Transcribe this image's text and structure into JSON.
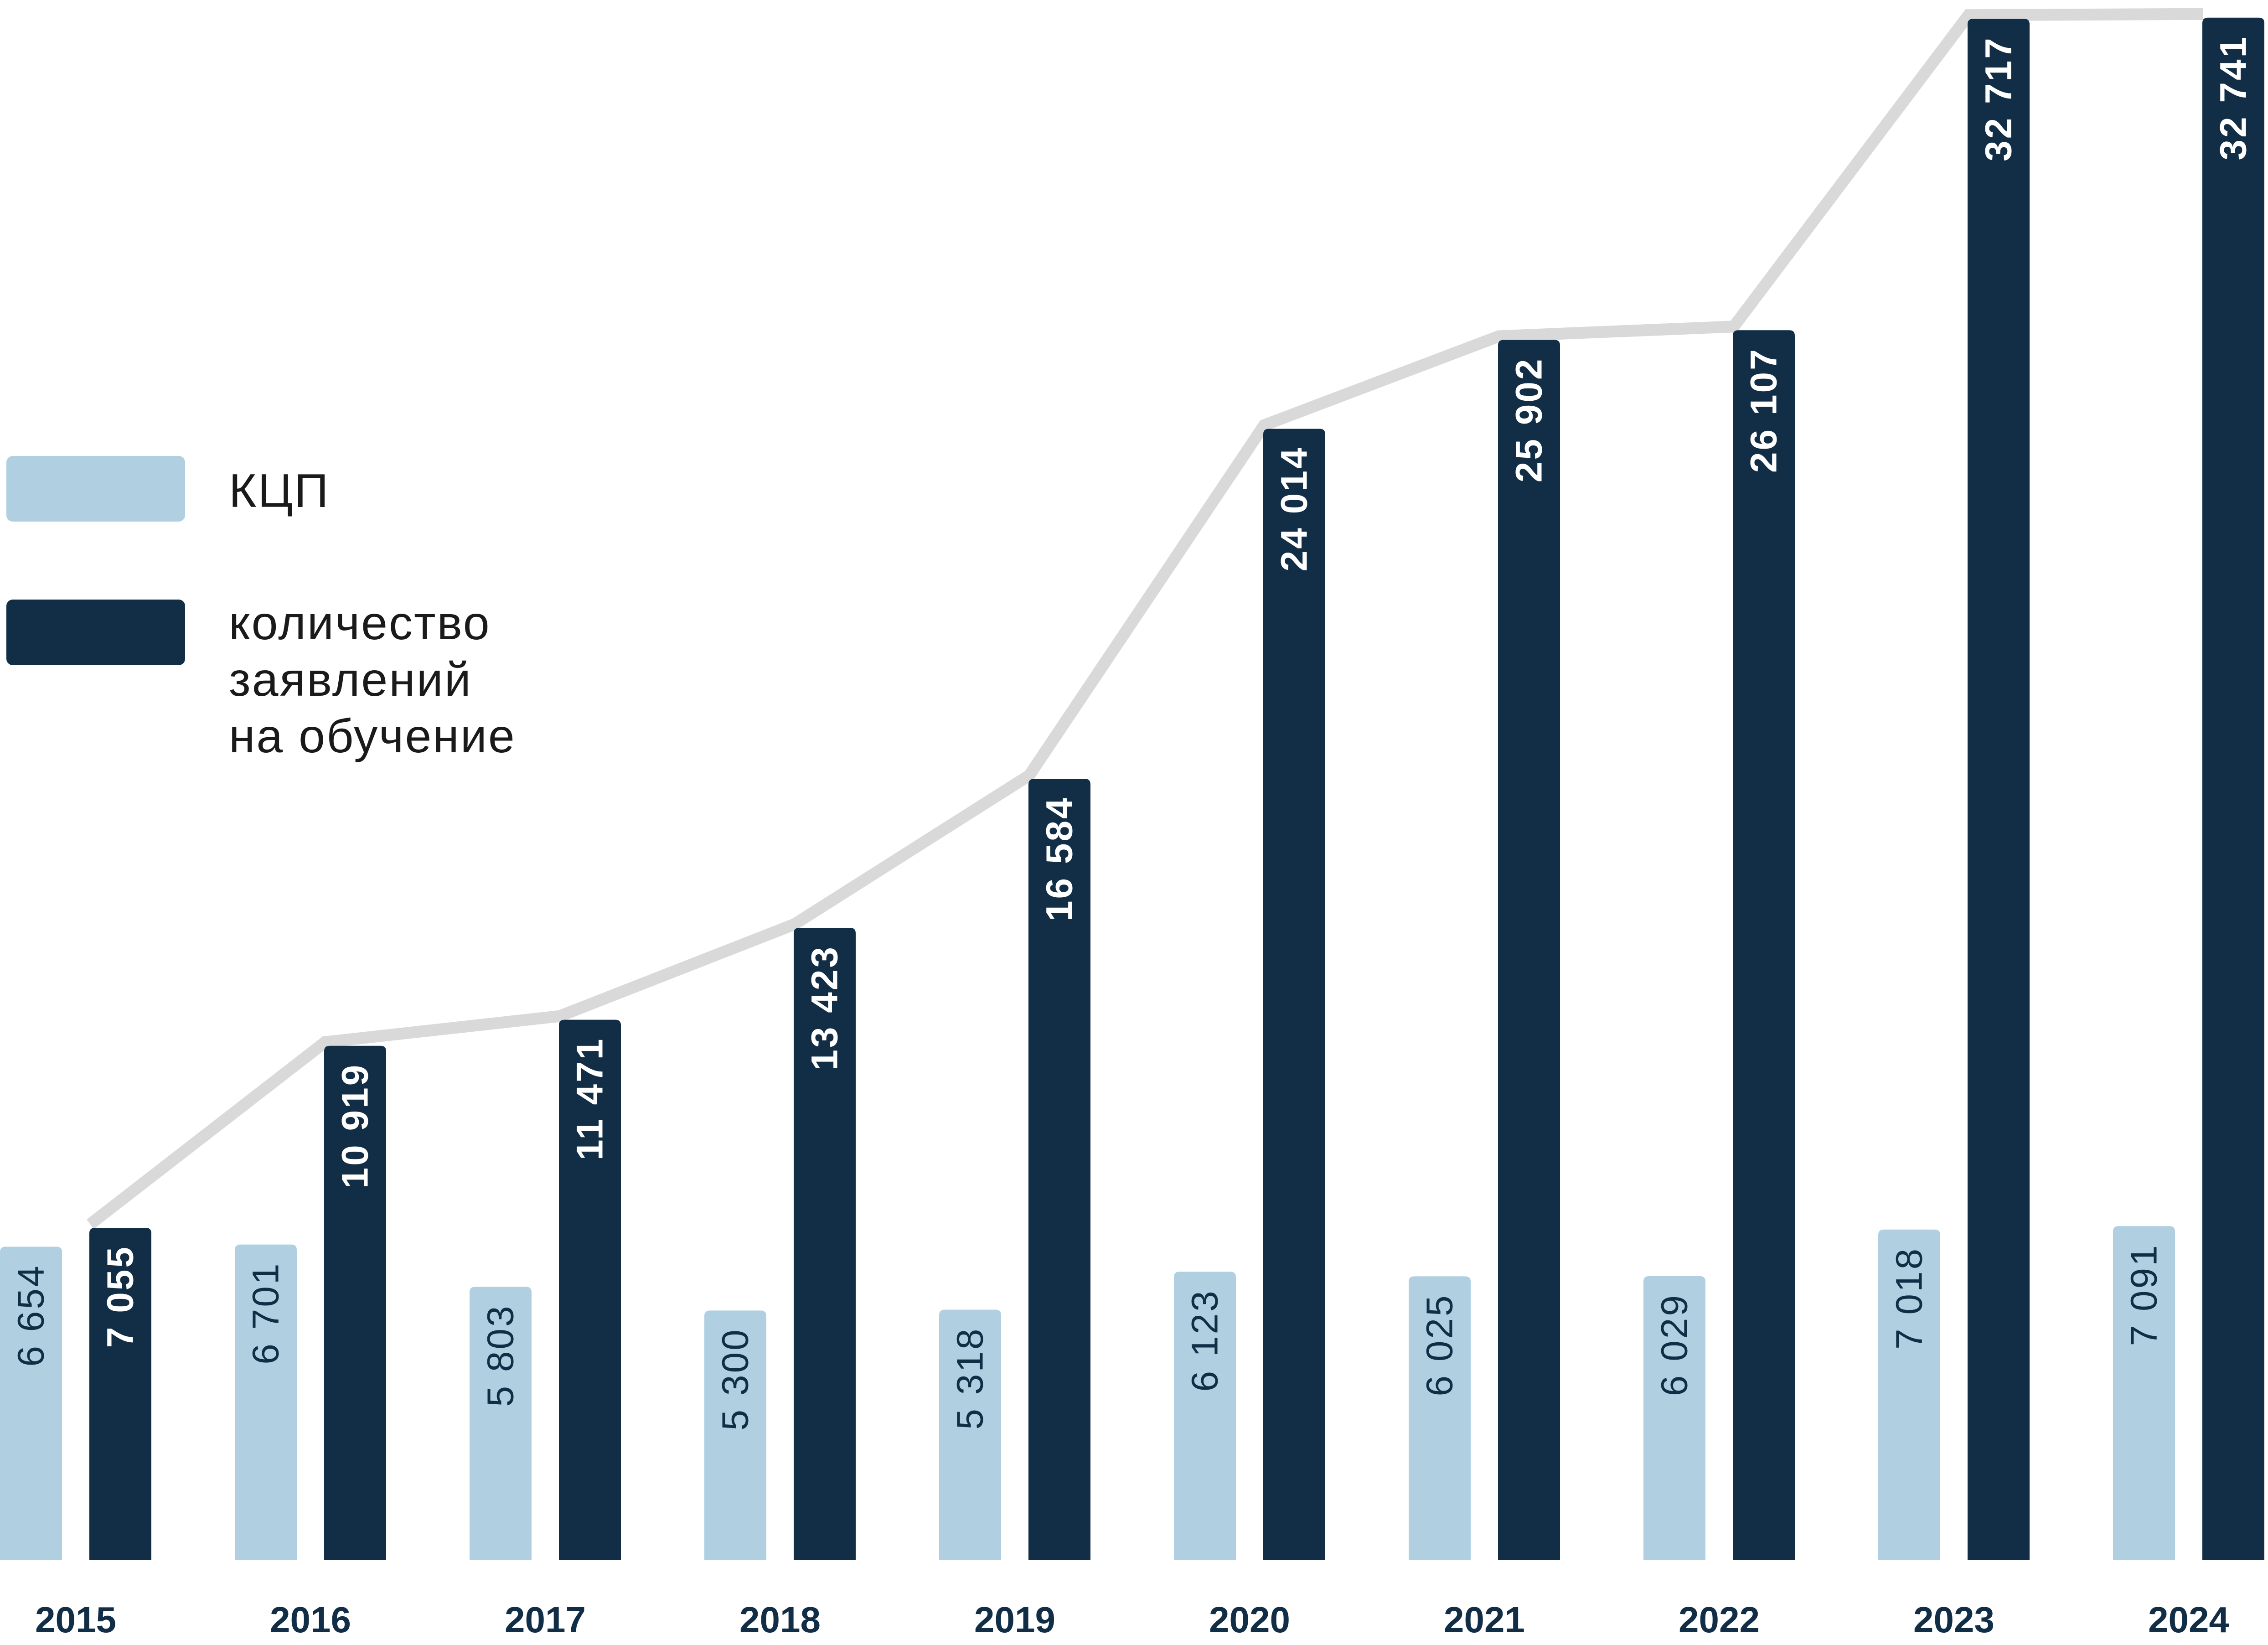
{
  "chart_data": {
    "type": "bar",
    "categories": [
      "2015",
      "2016",
      "2017",
      "2018",
      "2019",
      "2020",
      "2021",
      "2022",
      "2023",
      "2024"
    ],
    "series": [
      {
        "name": "КЦП",
        "values": [
          6654,
          6701,
          5803,
          5300,
          5318,
          6123,
          6025,
          6029,
          7018,
          7091
        ],
        "labels": [
          "6 654",
          "6 701",
          "5 803",
          "5 300",
          "5 318",
          "6 123",
          "6 025",
          "6 029",
          "7 018",
          "7 091"
        ],
        "color": "#b0d0e2"
      },
      {
        "name": "количество\nзаявлений\nна обучение",
        "values": [
          7055,
          10919,
          11471,
          13423,
          16584,
          24014,
          25902,
          26107,
          32717,
          32741
        ],
        "labels": [
          "7 055",
          "10 919",
          "11 471",
          "13 423",
          "16 584",
          "24 014",
          "25 902",
          "26 107",
          "32 717",
          "32 741"
        ],
        "color": "#112e46"
      }
    ],
    "trend_line": {
      "follows_series": "количество\nзаявлений\nна обучение",
      "color": "#d9d9d9"
    },
    "label_colors": {
      "light_bar_text": "#112e46",
      "dark_bar_text": "#ffffff",
      "year_text": "#112e46"
    },
    "ylim": [
      0,
      33000
    ],
    "grid": false,
    "legend": "left",
    "title": "",
    "xlabel": "",
    "ylabel": ""
  }
}
